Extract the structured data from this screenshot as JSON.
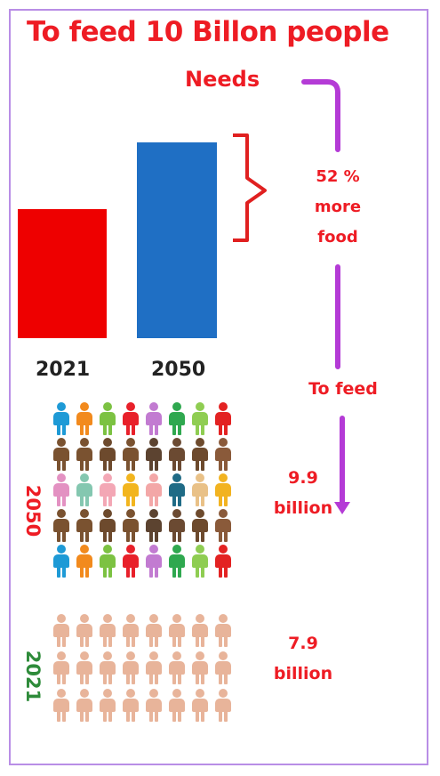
{
  "title": "To feed 10 Billon people",
  "needs_label": "Needs",
  "increase_label": [
    "52 %",
    "more",
    "food"
  ],
  "to_feed_label": "To feed",
  "chart_data": {
    "type": "bar",
    "categories": [
      "2021",
      "2050"
    ],
    "values": [
      1.0,
      1.52
    ],
    "colors": [
      "#ee0000",
      "#1f6fc4"
    ],
    "title": "",
    "xlabel": "",
    "ylabel": "",
    "ylim": [
      0,
      1.6
    ]
  },
  "population": [
    {
      "year": "2050",
      "value": "9.9",
      "unit": "billion",
      "year_color": "#ee1c24",
      "rows": 5
    },
    {
      "year": "2021",
      "value": "7.9",
      "unit": "billion",
      "year_color": "#2e8b3a",
      "rows": 3
    }
  ],
  "people_colors": {
    "2050_row1": [
      "#1e9ad6",
      "#f28a1d",
      "#7cc242",
      "#e8202a",
      "#c27bd1",
      "#2fa84f",
      "#8fcd52",
      "#e32222"
    ],
    "2050_row2": [
      "#7a5230",
      "#7a5230",
      "#6d4a2d",
      "#7a5230",
      "#5c4330",
      "#6b4a32",
      "#6d4a2d",
      "#8a5a3a"
    ],
    "2050_row3": [
      "#e391c2",
      "#84c7b0",
      "#f3a7b5",
      "#f2b51e",
      "#f3a7a7",
      "#1f6b86",
      "#e9c187",
      "#f2b320"
    ],
    "2050_row4": [
      "#7a5230",
      "#7a5230",
      "#6d4a2d",
      "#7a5230",
      "#5c4330",
      "#6b4a32",
      "#6d4a2d",
      "#8a5a3a"
    ],
    "2050_row5": [
      "#1e9ad6",
      "#f28a1d",
      "#7cc242",
      "#e8202a",
      "#c27bd1",
      "#2fa84f",
      "#8fcd52",
      "#e32222"
    ],
    "2021": "#e8b49a"
  }
}
